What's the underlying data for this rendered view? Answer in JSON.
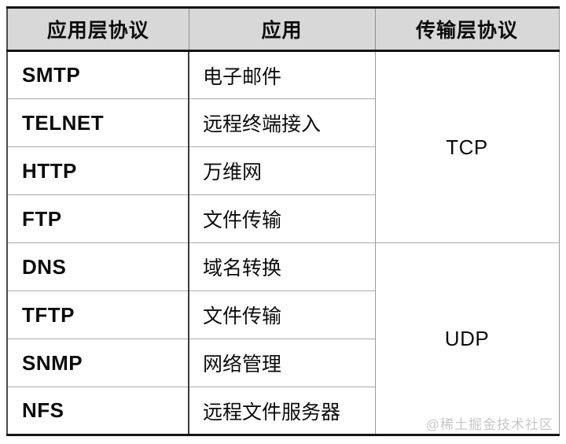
{
  "table": {
    "headers": [
      "应用层协议",
      "应用",
      "传输层协议"
    ],
    "rows": [
      {
        "protocol": "SMTP",
        "application": "电子邮件"
      },
      {
        "protocol": "TELNET",
        "application": "远程终端接入"
      },
      {
        "protocol": "HTTP",
        "application": "万维网"
      },
      {
        "protocol": "FTP",
        "application": "文件传输"
      },
      {
        "protocol": "DNS",
        "application": "域名转换"
      },
      {
        "protocol": "TFTP",
        "application": "文件传输"
      },
      {
        "protocol": "SNMP",
        "application": "网络管理"
      },
      {
        "protocol": "NFS",
        "application": "远程文件服务器"
      }
    ],
    "transport": [
      {
        "label": "TCP"
      },
      {
        "label": "UDP"
      }
    ]
  },
  "watermark": "@稀土掘金技术社区",
  "colors": {
    "header_bg": "#d8d8d8",
    "border_dark": "#151515",
    "border_row": "#ababab",
    "text": "#0c0c0c",
    "watermark": "#c7c7c7"
  }
}
